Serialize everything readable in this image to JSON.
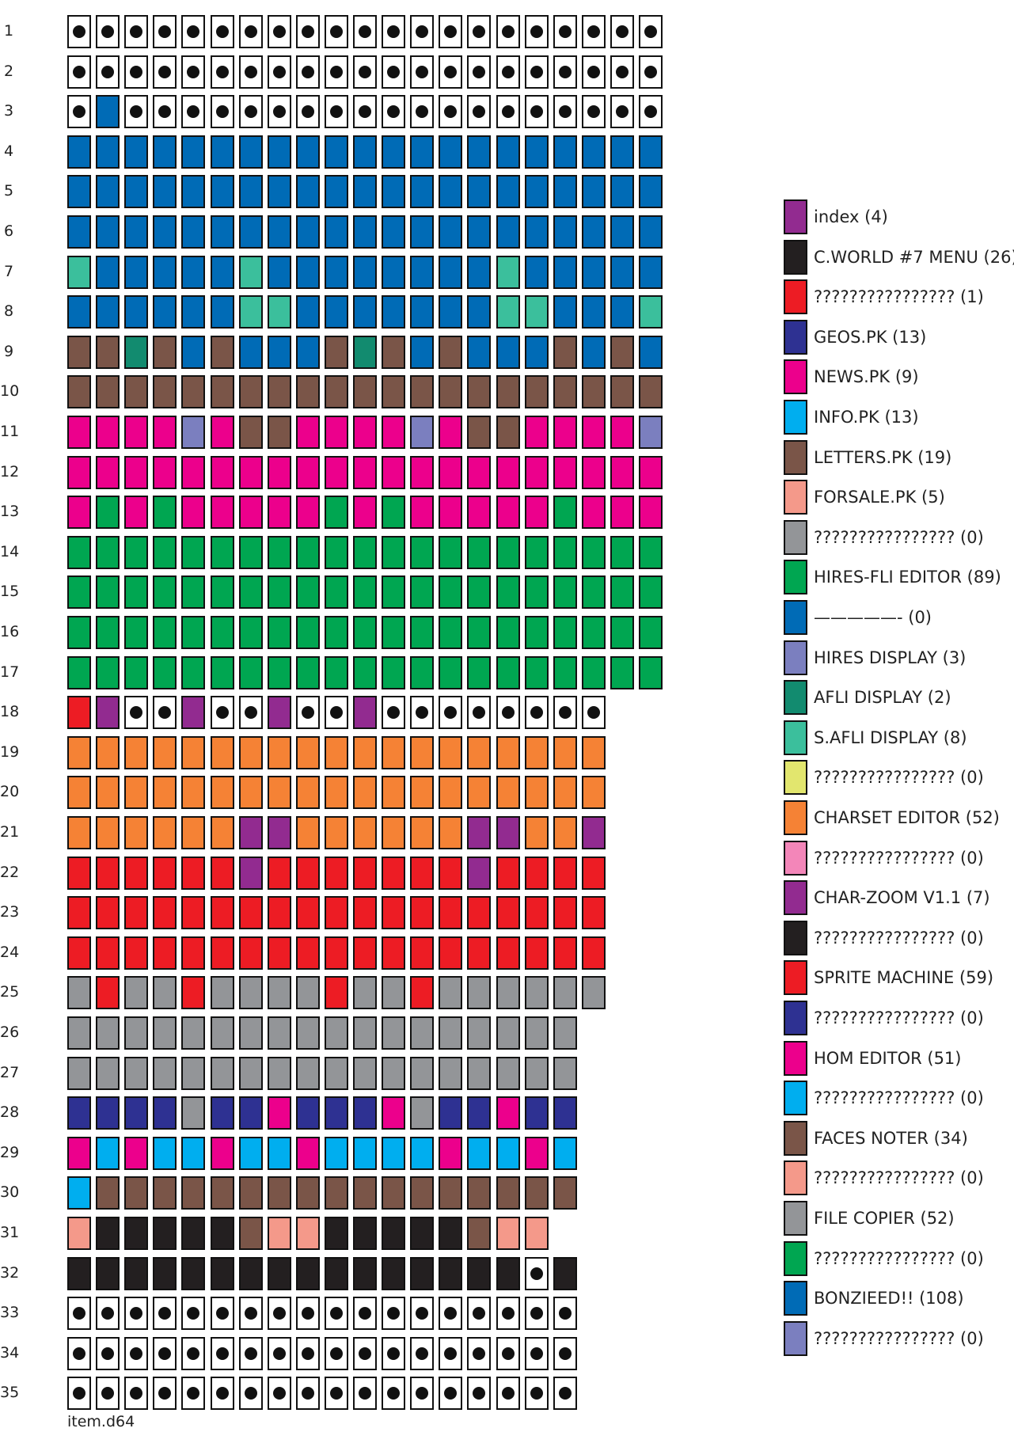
{
  "disk_name": "item.d64",
  "row_labels": [
    "1",
    "2",
    "3",
    "4",
    "5",
    "6",
    "7",
    "8",
    "9",
    "10",
    "11",
    "12",
    "13",
    "14",
    "15",
    "16",
    "17",
    "18",
    "19",
    "20",
    "21",
    "22",
    "23",
    "24",
    "25",
    "26",
    "27",
    "28",
    "29",
    "30",
    "31",
    "32",
    "33",
    "34",
    "35"
  ],
  "files": [
    {
      "label": "index (4)",
      "color": "#922b90"
    },
    {
      "label": "C.WORLD #7 MENU (26)",
      "color": "#231f20"
    },
    {
      "label": "???????????????? (1)",
      "color": "#ed1c24"
    },
    {
      "label": "GEOS.PK (13)",
      "color": "#2e3192"
    },
    {
      "label": "NEWS.PK (9)",
      "color": "#ec008c"
    },
    {
      "label": "INFO.PK (13)",
      "color": "#00aeef"
    },
    {
      "label": "LETTERS.PK (19)",
      "color": "#7a5548"
    },
    {
      "label": "FORSALE.PK (5)",
      "color": "#f4998a"
    },
    {
      "label": "???????????????? (0)",
      "color": "#939598"
    },
    {
      "label": "HIRES-FLI EDITOR (89)",
      "color": "#00a651"
    },
    {
      "label": "—————- (0)",
      "color": "#006bb6"
    },
    {
      "label": "HIRES DISPLAY (3)",
      "color": "#7b7fbf"
    },
    {
      "label": "AFLI DISPLAY (2)",
      "color": "#128b6f"
    },
    {
      "label": "S.AFLI DISPLAY (8)",
      "color": "#3bbf9c"
    },
    {
      "label": "???????????????? (0)",
      "color": "#e2e66e"
    },
    {
      "label": "CHARSET EDITOR (52)",
      "color": "#f58235"
    },
    {
      "label": "???????????????? (0)",
      "color": "#f386b9"
    },
    {
      "label": "CHAR-ZOOM V1.1 (7)",
      "color": "#922b90"
    },
    {
      "label": "???????????????? (0)",
      "color": "#231f20"
    },
    {
      "label": "SPRITE MACHINE (59)",
      "color": "#ed1c24"
    },
    {
      "label": "???????????????? (0)",
      "color": "#2e3192"
    },
    {
      "label": "HOM EDITOR (51)",
      "color": "#ec008c"
    },
    {
      "label": "???????????????? (0)",
      "color": "#00aeef"
    },
    {
      "label": "FACES NOTER (34)",
      "color": "#7a5548"
    },
    {
      "label": "???????????????? (0)",
      "color": "#f4998a"
    },
    {
      "label": "FILE COPIER (52)",
      "color": "#939598"
    },
    {
      "label": "???????????????? (0)",
      "color": "#00a651"
    },
    {
      "label": "BONZIEED!! (108)",
      "color": "#006bb6"
    },
    {
      "label": "???????????????? (0)",
      "color": "#7b7fbf"
    }
  ],
  "colors": {
    "free": "#ffffff",
    "B": "#006bb6",
    "Q": "#3bbf9c",
    "R": "#7a5548",
    "E": "#128b6f",
    "M": "#ec008c",
    "L": "#7b7fbf",
    "G": "#00a651",
    "D": "#ed1c24",
    "P": "#922b90",
    "O": "#f58235",
    "Y": "#939598",
    "N": "#2e3192",
    "C": "#00aeef",
    "S": "#f4998a",
    "K": "#231f20"
  },
  "block_map": [
    ".....................",
    ".....................",
    ".B...................",
    "BBBBBBBBBBBBBBBBBBBBB",
    "BBBBBBBBBBBBBBBBBBBBB",
    "BBBBBBBBBBBBBBBBBBBBB",
    "QBBBBBQBBBBBBBBQBBBBB",
    "BBBBBBQQBBBBBBBQQBBBQ",
    "RRERBRBBBRERBRBBBRBRB",
    "RRRRRRRRRRRRRRRRRRRRR",
    "MMMMLMRRMMMMLMRRMMMML",
    "MMMMMMMMMMMMMMMMMMMMM",
    "MGMGMMMMMGMGMMMMMGMMM",
    "GGGGGGGGGGGGGGGGGGGGG",
    "GGGGGGGGGGGGGGGGGGGGG",
    "GGGGGGGGGGGGGGGGGGGGG",
    "GGGGGGGGGGGGGGGGGGGGG",
    "DP..P..P..P........",
    "OOOOOOOOOOOOOOOOOOO",
    "OOOOOOOOOOOOOOOOOOO",
    "OOOOOOPPOOOOOOPPOOP",
    "DDDDDDPDDDDDDDPDDDD",
    "DDDDDDDDDDDDDDDDDDD",
    "DDDDDDDDDDDDDDDDDDD",
    "YDYYDYYYYDYYDYYYYYY",
    "YYYYYYYYYYYYYYYYYY",
    "YYYYYYYYYYYYYYYYYY",
    "NNNNYNNMNNNMYNNMNN",
    "MCMCCMCCMCCCCMCCMC",
    "CRRRRRRRRRRRRRRRRR",
    "SKKKKKRSSKKKKKRSS",
    "KKKKKKKKKKKKKKKK.K",
    "KKKKKKKKKKKKKKKKKK",
    "KKKKKKKKKKKKKKKKKK",
    "KKKKKKKKKKKKKKKKKK"
  ]
}
